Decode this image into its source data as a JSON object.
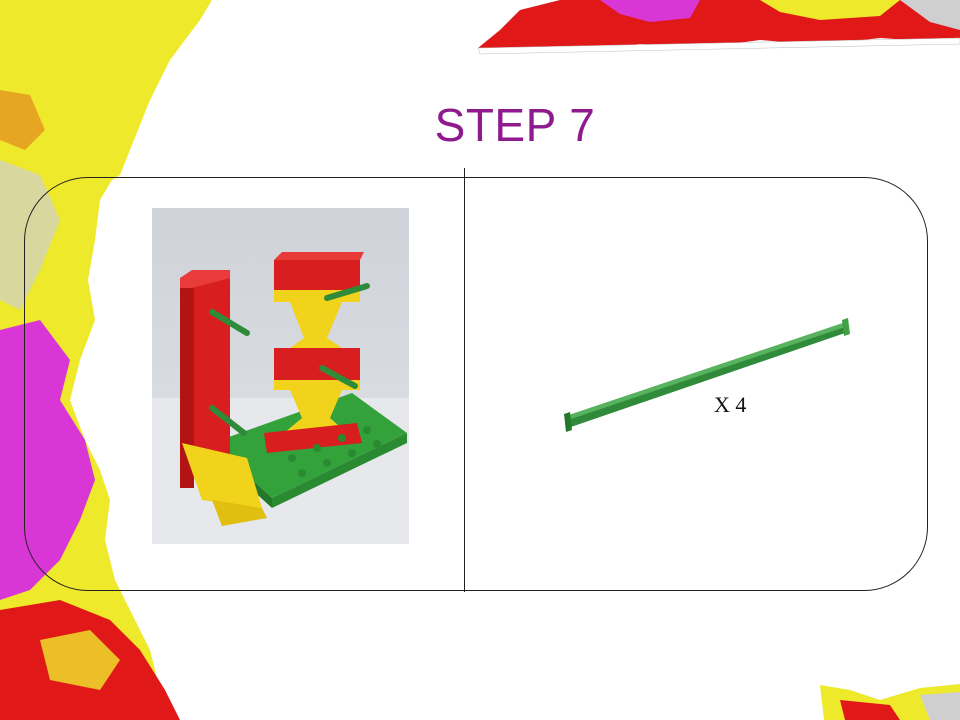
{
  "slide": {
    "title": "STEP 7",
    "quantity_label": "X 4"
  },
  "icons": {
    "model_photo": "lego-model-photo",
    "part": "green-axle-rod"
  },
  "colors": {
    "title": "#8e1a8e",
    "rod": "#2f8a3a",
    "brick_red": "#d81e1e",
    "brick_yellow": "#f2d31b",
    "base_green": "#33a23a"
  }
}
